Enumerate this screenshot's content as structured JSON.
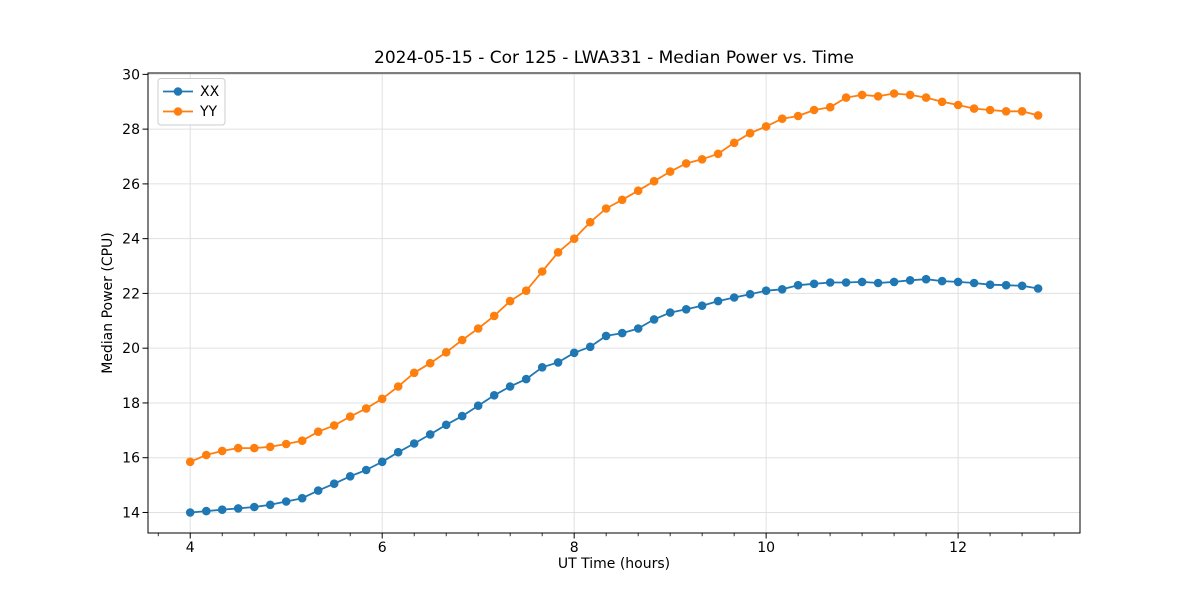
{
  "chart_data": {
    "type": "line",
    "title": "2024-05-15 - Cor 125 - LWA331 - Median Power vs. Time",
    "xlabel": "UT Time (hours)",
    "ylabel": "Median Power (CPU)",
    "xlim": [
      3.56,
      13.27
    ],
    "ylim": [
      13.25,
      30.05
    ],
    "x_major_ticks": [
      4,
      6,
      8,
      10,
      12
    ],
    "x_minor_step": 0.33333,
    "y_major_ticks": [
      14,
      16,
      18,
      20,
      22,
      24,
      26,
      28,
      30
    ],
    "grid": true,
    "grid_color": "#e0e0e0",
    "legend_position": "upper left",
    "x": [
      4.0,
      4.167,
      4.333,
      4.5,
      4.667,
      4.833,
      5.0,
      5.167,
      5.333,
      5.5,
      5.667,
      5.833,
      6.0,
      6.167,
      6.333,
      6.5,
      6.667,
      6.833,
      7.0,
      7.167,
      7.333,
      7.5,
      7.667,
      7.833,
      8.0,
      8.167,
      8.333,
      8.5,
      8.667,
      8.833,
      9.0,
      9.167,
      9.333,
      9.5,
      9.667,
      9.833,
      10.0,
      10.167,
      10.333,
      10.5,
      10.667,
      10.833,
      11.0,
      11.167,
      11.333,
      11.5,
      11.667,
      11.833,
      12.0,
      12.167,
      12.333,
      12.5,
      12.667,
      12.833
    ],
    "series": [
      {
        "name": "XX",
        "color": "#1f77b4",
        "values": [
          14.0,
          14.05,
          14.1,
          14.15,
          14.2,
          14.28,
          14.4,
          14.52,
          14.8,
          15.05,
          15.32,
          15.55,
          15.85,
          16.2,
          16.52,
          16.85,
          17.2,
          17.52,
          17.9,
          18.28,
          18.6,
          18.87,
          19.3,
          19.48,
          19.83,
          20.05,
          20.45,
          20.55,
          20.72,
          21.05,
          21.3,
          21.42,
          21.55,
          21.72,
          21.85,
          21.97,
          22.1,
          22.15,
          22.3,
          22.35,
          22.4,
          22.4,
          22.42,
          22.38,
          22.42,
          22.48,
          22.52,
          22.45,
          22.42,
          22.38,
          22.32,
          22.3,
          22.28,
          22.18
        ]
      },
      {
        "name": "YY",
        "color": "#ff7f0e",
        "values": [
          15.85,
          16.1,
          16.25,
          16.35,
          16.35,
          16.4,
          16.5,
          16.62,
          16.95,
          17.18,
          17.5,
          17.8,
          18.15,
          18.6,
          19.1,
          19.45,
          19.85,
          20.3,
          20.72,
          21.18,
          21.72,
          22.1,
          22.8,
          23.5,
          24.0,
          24.6,
          25.1,
          25.42,
          25.75,
          26.1,
          26.45,
          26.75,
          26.9,
          27.1,
          27.5,
          27.85,
          28.1,
          28.38,
          28.48,
          28.7,
          28.8,
          29.15,
          29.25,
          29.2,
          29.3,
          29.25,
          29.15,
          29.0,
          28.88,
          28.75,
          28.7,
          28.65,
          28.65,
          28.5
        ]
      }
    ]
  }
}
